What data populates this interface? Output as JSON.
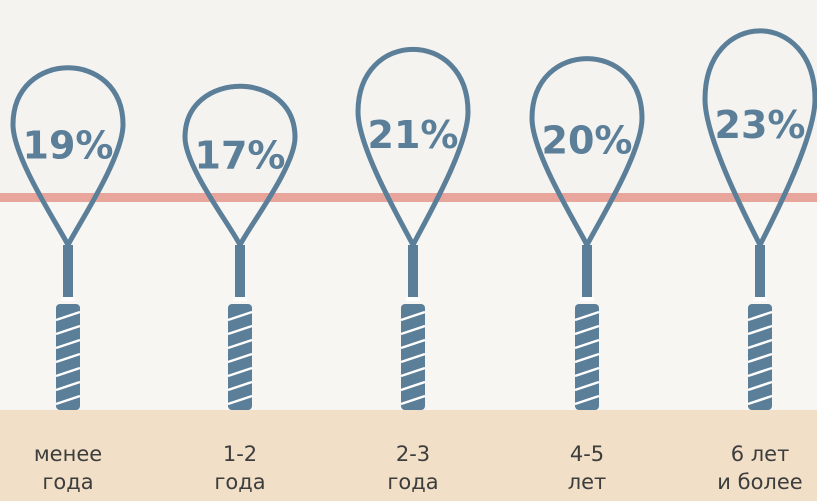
{
  "chart_data": {
    "type": "racket",
    "categories": [
      "менее\nгода",
      "1-2\nгода",
      "2-3\nгода",
      "4-5\nлет",
      "6 лет\nи более"
    ],
    "values": [
      19,
      17,
      21,
      20,
      23
    ],
    "value_labels": [
      "19%",
      "17%",
      "21%",
      "20%",
      "23%"
    ],
    "color": "#5b7e99"
  }
}
